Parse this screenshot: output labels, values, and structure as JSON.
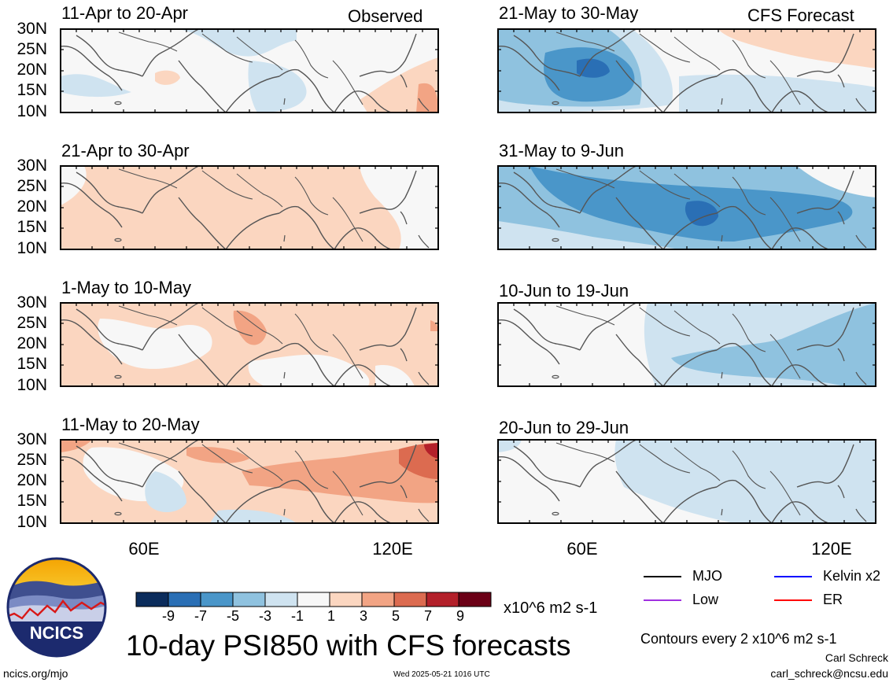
{
  "header": {
    "observed_label": "Observed",
    "forecast_label": "CFS Forecast"
  },
  "latitude_ticks": [
    "30N",
    "25N",
    "20N",
    "15N",
    "10N"
  ],
  "longitude_ticks": [
    "60E",
    "120E"
  ],
  "panels": [
    {
      "id": "obs-1",
      "date_range": "11-Apr to 20-Apr",
      "source": "Observed"
    },
    {
      "id": "obs-2",
      "date_range": "21-Apr to 30-Apr",
      "source": "Observed"
    },
    {
      "id": "obs-3",
      "date_range": "1-May to 10-May",
      "source": "Observed"
    },
    {
      "id": "obs-4",
      "date_range": "11-May to 20-May",
      "source": "Observed"
    },
    {
      "id": "fc-1",
      "date_range": "21-May to 30-May",
      "source": "CFS Forecast"
    },
    {
      "id": "fc-2",
      "date_range": "31-May to 9-Jun",
      "source": "CFS Forecast"
    },
    {
      "id": "fc-3",
      "date_range": "10-Jun to 19-Jun",
      "source": "CFS Forecast"
    },
    {
      "id": "fc-4",
      "date_range": "20-Jun to 29-Jun",
      "source": "CFS Forecast"
    }
  ],
  "colorbar": {
    "tick_labels": [
      "-9",
      "-7",
      "-5",
      "-3",
      "-1",
      "1",
      "3",
      "5",
      "7",
      "9"
    ],
    "colors": [
      "#0b2c5c",
      "#2a6fb5",
      "#4a96c9",
      "#8fc2df",
      "#cfe3f0",
      "#f7f7f7",
      "#fbd6c0",
      "#f2a484",
      "#dc6b50",
      "#b3202a",
      "#6b0016"
    ],
    "units": "x10^6 m2 s-1"
  },
  "legend": {
    "items": [
      {
        "label": "MJO",
        "color": "#000000"
      },
      {
        "label": "Kelvin x2",
        "color": "#0000ff"
      },
      {
        "label": "Low",
        "color": "#a030e0"
      },
      {
        "label": "ER",
        "color": "#ff0000"
      }
    ],
    "contour_note": "Contours every 2 x10^6 m2 s-1"
  },
  "logo": {
    "text": "NCICS"
  },
  "title": "10-day PSI850 with CFS forecasts",
  "footer": {
    "url": "ncics.org/mjo",
    "timestamp": "Wed 2025-05-21 1016 UTC",
    "author": "Carl Schreck",
    "email": "carl_schreck@ncsu.edu"
  }
}
